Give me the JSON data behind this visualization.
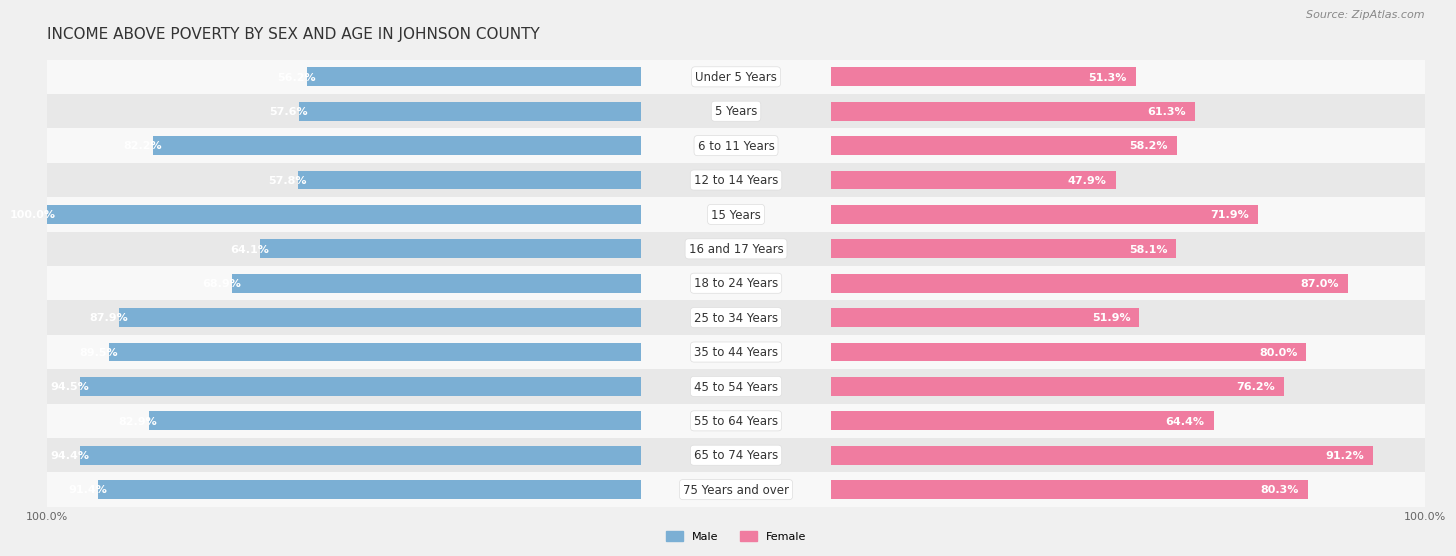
{
  "title": "INCOME ABOVE POVERTY BY SEX AND AGE IN JOHNSON COUNTY",
  "source": "Source: ZipAtlas.com",
  "categories": [
    "Under 5 Years",
    "5 Years",
    "6 to 11 Years",
    "12 to 14 Years",
    "15 Years",
    "16 and 17 Years",
    "18 to 24 Years",
    "25 to 34 Years",
    "35 to 44 Years",
    "45 to 54 Years",
    "55 to 64 Years",
    "65 to 74 Years",
    "75 Years and over"
  ],
  "male_values": [
    56.2,
    57.6,
    82.2,
    57.8,
    100.0,
    64.1,
    68.9,
    87.9,
    89.5,
    94.5,
    82.9,
    94.4,
    91.4
  ],
  "female_values": [
    51.3,
    61.3,
    58.2,
    47.9,
    71.9,
    58.1,
    87.0,
    51.9,
    80.0,
    76.2,
    64.4,
    91.2,
    80.3
  ],
  "male_color": "#7bafd4",
  "female_color": "#f07ca0",
  "male_bar_light": "#b8d0e8",
  "female_bar_light": "#f5b8cb",
  "background_color": "#f0f0f0",
  "row_color_even": "#f8f8f8",
  "row_color_odd": "#e8e8e8",
  "bar_height": 0.55,
  "xlim_max": 100,
  "xlabel_val": "100.0%",
  "legend_male": "Male",
  "legend_female": "Female",
  "title_fontsize": 11,
  "label_fontsize": 8,
  "tick_fontsize": 8,
  "source_fontsize": 8,
  "cat_fontsize": 8.5,
  "inside_label_threshold": 20
}
